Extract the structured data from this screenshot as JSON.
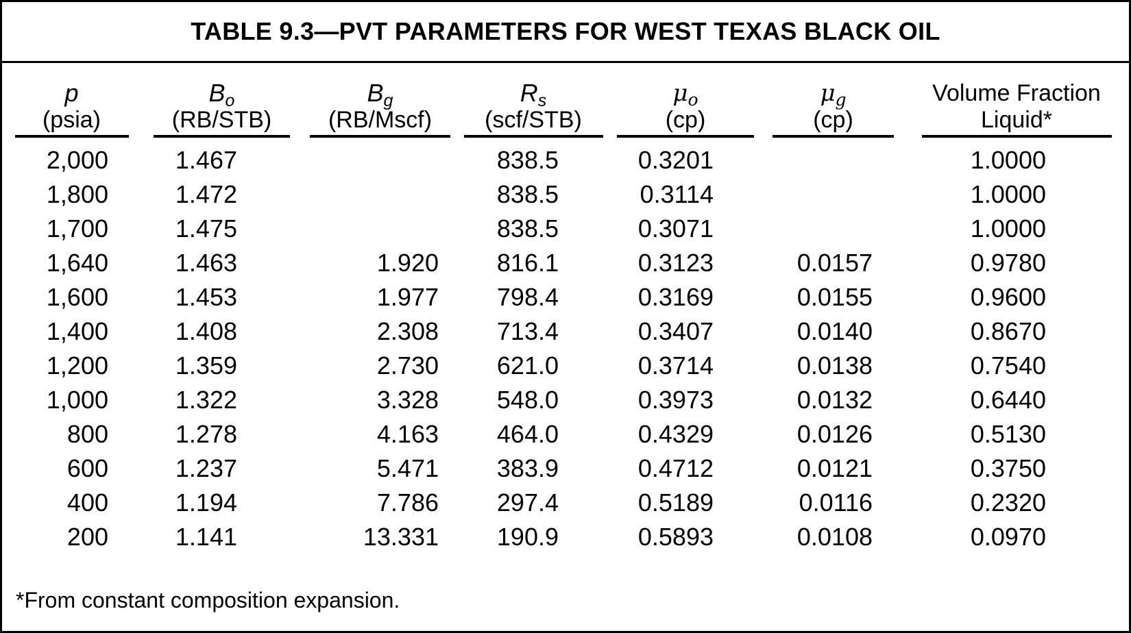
{
  "table": {
    "title": "TABLE 9.3—PVT PARAMETERS FOR WEST TEXAS BLACK OIL",
    "footnote": "*From constant composition expansion.",
    "columns": [
      {
        "id": "p",
        "symbol": "p",
        "sub": "",
        "unit": "(psia)",
        "math": true,
        "greek": false
      },
      {
        "id": "bo",
        "symbol": "B",
        "sub": "o",
        "unit": "(RB/STB)",
        "math": true,
        "greek": false
      },
      {
        "id": "bg",
        "symbol": "B",
        "sub": "g",
        "unit": "(RB/Mscf)",
        "math": true,
        "greek": false
      },
      {
        "id": "rs",
        "symbol": "R",
        "sub": "s",
        "unit": "(scf/STB)",
        "math": true,
        "greek": false
      },
      {
        "id": "muo",
        "symbol": "μ",
        "sub": "o",
        "unit": "(cp)",
        "math": true,
        "greek": true
      },
      {
        "id": "mug",
        "symbol": "μ",
        "sub": "g",
        "unit": "(cp)",
        "math": true,
        "greek": true
      },
      {
        "id": "vfl",
        "symbol": "Volume Fraction",
        "sub": "",
        "unit": "Liquid*",
        "math": false,
        "greek": false
      }
    ],
    "rows": [
      [
        "2,000",
        "1.467",
        "",
        "838.5",
        "0.3201",
        "",
        "1.0000"
      ],
      [
        "1,800",
        "1.472",
        "",
        "838.5",
        "0.3114",
        "",
        "1.0000"
      ],
      [
        "1,700",
        "1.475",
        "",
        "838.5",
        "0.3071",
        "",
        "1.0000"
      ],
      [
        "1,640",
        "1.463",
        "1.920",
        "816.1",
        "0.3123",
        "0.0157",
        "0.9780"
      ],
      [
        "1,600",
        "1.453",
        "1.977",
        "798.4",
        "0.3169",
        "0.0155",
        "0.9600"
      ],
      [
        "1,400",
        "1.408",
        "2.308",
        "713.4",
        "0.3407",
        "0.0140",
        "0.8670"
      ],
      [
        "1,200",
        "1.359",
        "2.730",
        "621.0",
        "0.3714",
        "0.0138",
        "0.7540"
      ],
      [
        "1,000",
        "1.322",
        "3.328",
        "548.0",
        "0.3973",
        "0.0132",
        "0.6440"
      ],
      [
        "800",
        "1.278",
        "4.163",
        "464.0",
        "0.4329",
        "0.0126",
        "0.5130"
      ],
      [
        "600",
        "1.237",
        "5.471",
        "383.9",
        "0.4712",
        "0.0121",
        "0.3750"
      ],
      [
        "400",
        "1.194",
        "7.786",
        "297.4",
        "0.5189",
        "0.0116",
        "0.2320"
      ],
      [
        "200",
        "1.141",
        "13.331",
        "190.9",
        "0.5893",
        "0.0108",
        "0.0970"
      ]
    ]
  }
}
